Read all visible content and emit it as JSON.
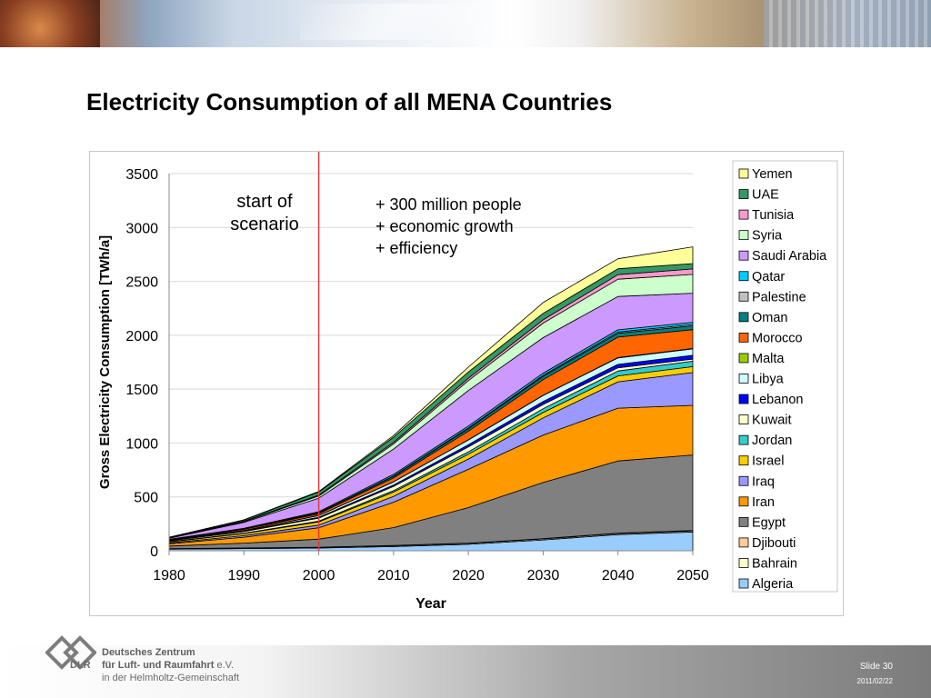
{
  "slide": {
    "title": "Electricity Consumption of all MENA Countries",
    "slide_number": "Slide 30",
    "date": "2011/02/22"
  },
  "footer": {
    "org_line1": "Deutsches Zentrum",
    "org_line2_bold": "für Luft- und Raumfahrt",
    "org_line2_suffix": " e.V.",
    "org_line3": "in der Helmholtz-Gemeinschaft",
    "logo_abbr": "DLR"
  },
  "chart_data": {
    "type": "area",
    "stacked": true,
    "xlabel": "Year",
    "ylabel": "Gross Electricity Consumption [TWh/a]",
    "x": [
      1980,
      1990,
      2000,
      2010,
      2020,
      2030,
      2040,
      2050
    ],
    "ylim": [
      0,
      3500
    ],
    "yticks": [
      0,
      500,
      1000,
      1500,
      2000,
      2500,
      3000,
      3500
    ],
    "grid": true,
    "legend_position": "right",
    "marker_line": {
      "x": 2000,
      "color": "#e23b3b"
    },
    "annotations": [
      {
        "id": "start",
        "lines": [
          "start of",
          "scenario"
        ]
      },
      {
        "id": "drivers",
        "lines": [
          "+ 300 million people",
          "+ economic growth",
          "+ efficiency"
        ]
      }
    ],
    "series": [
      {
        "name": "Algeria",
        "color": "#99ccff",
        "values": [
          15,
          20,
          25,
          40,
          60,
          100,
          150,
          175
        ]
      },
      {
        "name": "Bahrain",
        "color": "#ffffcc",
        "values": [
          3,
          5,
          7,
          8,
          9,
          10,
          10,
          10
        ]
      },
      {
        "name": "Djibouti",
        "color": "#ffcc99",
        "values": [
          1,
          1,
          1,
          2,
          2,
          3,
          3,
          4
        ]
      },
      {
        "name": "Egypt",
        "color": "#808080",
        "values": [
          25,
          45,
          75,
          165,
          330,
          520,
          670,
          700
        ]
      },
      {
        "name": "Iran",
        "color": "#ff9900",
        "values": [
          20,
          55,
          105,
          235,
          355,
          440,
          490,
          460
        ]
      },
      {
        "name": "Iraq",
        "color": "#9999ff",
        "values": [
          8,
          15,
          25,
          55,
          95,
          160,
          245,
          305
        ]
      },
      {
        "name": "Israel",
        "color": "#ffcc00",
        "values": [
          10,
          18,
          30,
          40,
          45,
          50,
          55,
          55
        ]
      },
      {
        "name": "Jordan",
        "color": "#33cccc",
        "values": [
          2,
          4,
          7,
          13,
          22,
          35,
          45,
          50
        ]
      },
      {
        "name": "Kuwait",
        "color": "#ffffcc",
        "values": [
          8,
          15,
          28,
          40,
          45,
          40,
          30,
          20
        ]
      },
      {
        "name": "Lebanon",
        "color": "#0000ff",
        "values": [
          2,
          4,
          8,
          13,
          20,
          28,
          32,
          35
        ]
      },
      {
        "name": "Libya",
        "color": "#ccffff",
        "values": [
          3,
          6,
          15,
          28,
          45,
          55,
          60,
          60
        ]
      },
      {
        "name": "Malta",
        "color": "#99cc00",
        "values": [
          1,
          1,
          2,
          2,
          2,
          2,
          3,
          3
        ]
      },
      {
        "name": "Morocco",
        "color": "#ff6600",
        "values": [
          5,
          10,
          15,
          35,
          80,
          145,
          190,
          175
        ]
      },
      {
        "name": "Oman",
        "color": "#008080",
        "values": [
          1,
          4,
          9,
          15,
          22,
          30,
          35,
          35
        ]
      },
      {
        "name": "Palestine",
        "color": "#c0c0c0",
        "values": [
          0,
          1,
          2,
          4,
          7,
          10,
          12,
          13
        ]
      },
      {
        "name": "Qatar",
        "color": "#00ccff",
        "values": [
          2,
          4,
          9,
          14,
          18,
          20,
          20,
          20
        ]
      },
      {
        "name": "Saudi Arabia",
        "color": "#cc99ff",
        "values": [
          10,
          55,
          125,
          235,
          330,
          330,
          310,
          270
        ]
      },
      {
        "name": "Syria",
        "color": "#ccffcc",
        "values": [
          4,
          8,
          20,
          48,
          92,
          135,
          160,
          175
        ]
      },
      {
        "name": "Tunisia",
        "color": "#ff99cc",
        "values": [
          2,
          4,
          9,
          14,
          22,
          30,
          42,
          50
        ]
      },
      {
        "name": "UAE",
        "color": "#339966",
        "values": [
          3,
          11,
          28,
          48,
          58,
          60,
          55,
          50
        ]
      },
      {
        "name": "Yemen",
        "color": "#ffff99",
        "values": [
          0,
          2,
          5,
          15,
          45,
          100,
          93,
          155
        ]
      }
    ]
  }
}
